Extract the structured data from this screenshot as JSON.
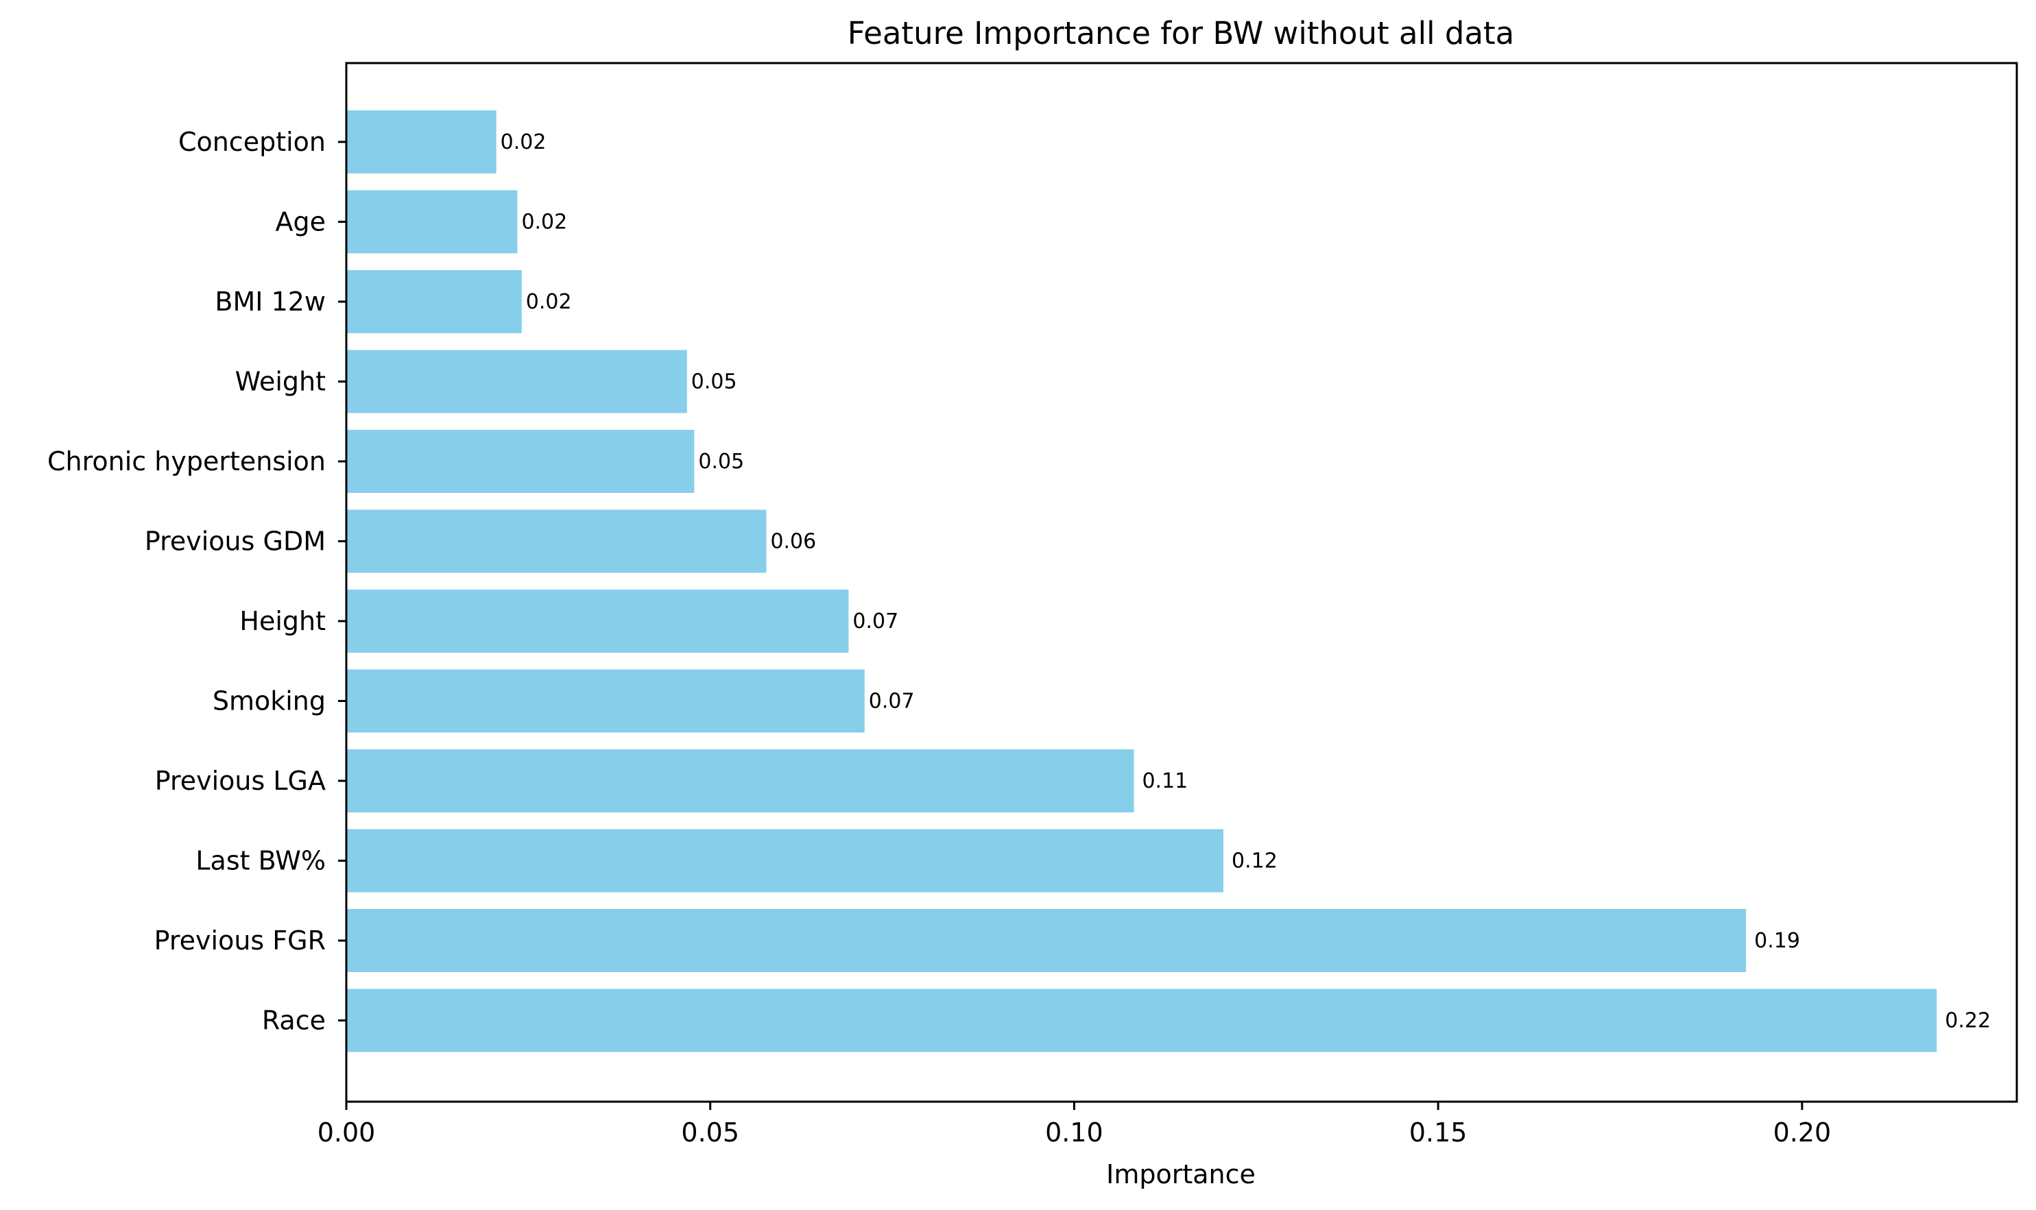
{
  "chart_data": {
    "type": "bar",
    "orientation": "horizontal",
    "title": "Feature Importance for BW without all data",
    "xlabel": "Importance",
    "ylabel": "",
    "categories": [
      "Conception",
      "Age",
      "BMI 12w",
      "Weight",
      "Chronic hypertension",
      "Previous GDM",
      "Height",
      "Smoking",
      "Previous LGA",
      "Last BW%",
      "Previous FGR",
      "Race"
    ],
    "values": [
      0.0206,
      0.0235,
      0.0241,
      0.0468,
      0.0478,
      0.0577,
      0.069,
      0.0712,
      0.1082,
      0.1205,
      0.1923,
      0.2185
    ],
    "data_labels": [
      "0.02",
      "0.02",
      "0.02",
      "0.05",
      "0.05",
      "0.06",
      "0.07",
      "0.07",
      "0.11",
      "0.12",
      "0.19",
      "0.22"
    ],
    "xlim": [
      0,
      0.2295
    ],
    "xticks": [
      0,
      0.05,
      0.1,
      0.15,
      0.2
    ],
    "xtick_labels": [
      "0.00",
      "0.05",
      "0.10",
      "0.15",
      "0.20"
    ],
    "bar_color": "#87ceeb",
    "grid": false,
    "legend": "none"
  }
}
